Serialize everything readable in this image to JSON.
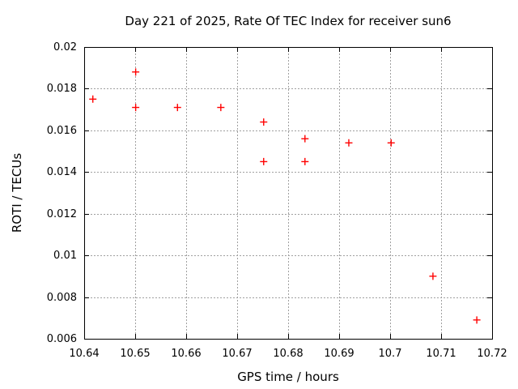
{
  "chart_data": {
    "type": "scatter",
    "title": "Day 221 of 2025, Rate Of TEC Index for receiver sun6",
    "xlabel": "GPS time / hours",
    "ylabel": "ROTI / TECUs",
    "xlim": [
      10.64,
      10.72
    ],
    "ylim": [
      0.006,
      0.02
    ],
    "xticks": [
      10.64,
      10.65,
      10.66,
      10.67,
      10.68,
      10.69,
      10.7,
      10.71,
      10.72
    ],
    "xtick_labels": [
      "10.64",
      "10.65",
      "10.66",
      "10.67",
      "10.68",
      "10.69",
      "10.7",
      "10.71",
      "10.72"
    ],
    "yticks": [
      0.006,
      0.008,
      0.01,
      0.012,
      0.014,
      0.016,
      0.018,
      0.02
    ],
    "ytick_labels": [
      "0.006",
      "0.008",
      "0.01",
      "0.012",
      "0.014",
      "0.016",
      "0.018",
      "0.02"
    ],
    "grid": true,
    "legend": "none",
    "marker": {
      "shape": "plus",
      "size": 9
    },
    "colors": {
      "marker": "#ff0000",
      "grid": "#a0a0a0",
      "axis": "#000000",
      "background": "#ffffff",
      "text": "#000000"
    },
    "x": [
      10.6417,
      10.6501,
      10.6501,
      10.6583,
      10.6668,
      10.6752,
      10.6752,
      10.6833,
      10.6833,
      10.6919,
      10.7002,
      10.7084,
      10.717
    ],
    "y": [
      0.0175,
      0.0188,
      0.0171,
      0.0171,
      0.0171,
      0.0164,
      0.0145,
      0.0156,
      0.0145,
      0.0154,
      0.0154,
      0.009,
      0.0069
    ]
  }
}
